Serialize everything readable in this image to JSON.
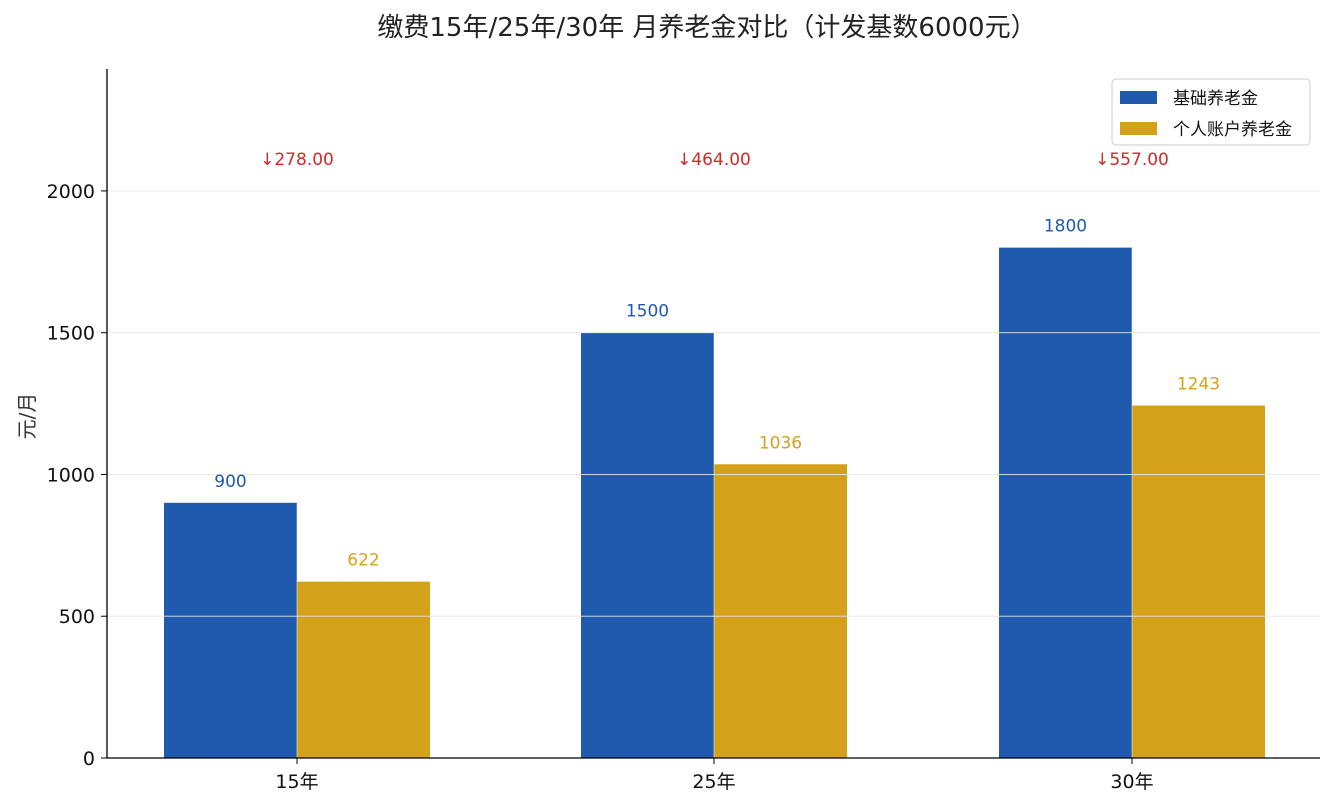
{
  "chart_data": {
    "type": "bar",
    "title": "缴费15年/25年/30年 月养老金对比（计发基数6000元）",
    "xlabel": "",
    "ylabel": "元/月",
    "categories": [
      "15年",
      "25年",
      "30年"
    ],
    "series": [
      {
        "name": "基础养老金",
        "values": [
          900,
          1500,
          1800
        ],
        "color": "#1f5aaf"
      },
      {
        "name": "个人账户养老金",
        "values": [
          622,
          1036,
          1243
        ],
        "color": "#d4a21a"
      }
    ],
    "value_labels": {
      "基础养老金": [
        "900",
        "1500",
        "1800"
      ],
      "个人账户养老金": [
        "622",
        "1036",
        "1243"
      ]
    },
    "annotations": [
      "↓278.00",
      "↓464.00",
      "↓557.00"
    ],
    "annotation_color": "#d62728",
    "ylim": [
      0,
      2430
    ],
    "yticks": [
      0,
      500,
      1000,
      1500,
      2000
    ],
    "grid": true,
    "legend_position": "top-right"
  }
}
